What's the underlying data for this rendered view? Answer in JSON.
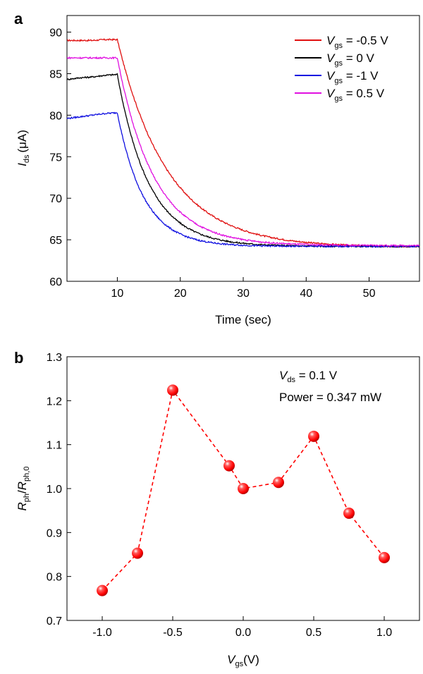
{
  "chart_data": [
    {
      "panel": "a",
      "type": "line",
      "xlabel": "Time (sec)",
      "ylabel": {
        "symbol": "I",
        "sub": "ds",
        "unit": "(μA)"
      },
      "xlim": [
        2,
        58
      ],
      "ylim": [
        60,
        92
      ],
      "xticks": [
        10,
        20,
        30,
        40,
        50
      ],
      "yticks": [
        60,
        65,
        70,
        75,
        80,
        85,
        90
      ],
      "legend": "top-right",
      "series": [
        {
          "label": {
            "symbol": "V",
            "sub": "gs",
            "text": " = -0.5 V"
          },
          "color": "#e01010",
          "tau": 8.0,
          "start": 89.0,
          "end": 64.1,
          "x": [
            2,
            4,
            6,
            8,
            10,
            12,
            14,
            16,
            18,
            20,
            24,
            28,
            32,
            36,
            40,
            45,
            50,
            55,
            58
          ],
          "y": [
            89.0,
            89.0,
            89.0,
            89.1,
            89.1,
            83.8,
            79.9,
            76.9,
            74.6,
            72.8,
            70.2,
            68.3,
            66.9,
            65.9,
            65.2,
            64.6,
            64.3,
            64.2,
            64.1
          ]
        },
        {
          "label": {
            "symbol": "V",
            "sub": "gs",
            "text": " = 0 V"
          },
          "color": "#000000",
          "tau": 5.0,
          "start": 84.3,
          "end": 64.2,
          "x": [
            2,
            4,
            6,
            8,
            10,
            12,
            14,
            16,
            18,
            20,
            24,
            28,
            32,
            36,
            40,
            45,
            50,
            55,
            58
          ],
          "y": [
            84.3,
            84.5,
            84.6,
            84.8,
            84.9,
            77.9,
            73.4,
            70.6,
            68.9,
            67.5,
            65.9,
            65.0,
            64.6,
            64.4,
            64.3,
            64.3,
            64.3,
            64.2,
            64.2
          ]
        },
        {
          "label": {
            "symbol": "V",
            "sub": "gs",
            "text": " = -1 V"
          },
          "color": "#1010e0",
          "tau": 4.2,
          "start": 79.6,
          "end": 64.2,
          "x": [
            2,
            4,
            6,
            8,
            10,
            12,
            14,
            16,
            18,
            20,
            24,
            28,
            32,
            36,
            40,
            45,
            50,
            55,
            58
          ],
          "y": [
            79.6,
            79.8,
            80.0,
            80.2,
            80.3,
            74.3,
            70.6,
            68.3,
            66.9,
            66.0,
            65.0,
            64.6,
            64.4,
            64.3,
            64.2,
            64.2,
            64.2,
            64.2,
            64.2
          ]
        },
        {
          "label": {
            "symbol": "V",
            "sub": "gs",
            "text": " = 0.5 V"
          },
          "color": "#e010e0",
          "tau": 5.8,
          "start": 86.9,
          "end": 64.3,
          "x": [
            2,
            4,
            6,
            8,
            10,
            12,
            14,
            16,
            18,
            20,
            24,
            28,
            32,
            36,
            40,
            45,
            50,
            55,
            58
          ],
          "y": [
            86.9,
            86.9,
            86.9,
            86.9,
            86.9,
            80.5,
            75.9,
            72.7,
            70.4,
            68.7,
            66.5,
            65.3,
            64.7,
            64.5,
            64.4,
            64.3,
            64.3,
            64.3,
            64.3
          ]
        }
      ]
    },
    {
      "panel": "b",
      "type": "scatter",
      "line_style": "dashed",
      "xlabel": {
        "symbol": "V",
        "sub": "gs",
        "unit": "(V)"
      },
      "ylabel": {
        "symbol1": "R",
        "sub1": "ph",
        "symbol2": "R",
        "sub2": "ph,0"
      },
      "xlim": [
        -1.25,
        1.25
      ],
      "ylim": [
        0.7,
        1.3
      ],
      "xticks": [
        -1.0,
        -0.5,
        0.0,
        0.5,
        1.0
      ],
      "xtick_labels": [
        "-1.0",
        "-0.5",
        "0.0",
        "0.5",
        "1.0"
      ],
      "yticks": [
        0.7,
        0.8,
        0.9,
        1.0,
        1.1,
        1.2,
        1.3
      ],
      "ytick_labels": [
        "0.7",
        "0.8",
        "0.9",
        "1.0",
        "1.1",
        "1.2",
        "1.3"
      ],
      "color": "#ff0000",
      "x": [
        -1.0,
        -0.75,
        -0.5,
        -0.1,
        0.0,
        0.25,
        0.5,
        0.75,
        1.0
      ],
      "y": [
        0.768,
        0.853,
        1.224,
        1.052,
        1.0,
        1.014,
        1.119,
        0.944,
        0.843
      ],
      "annotations": [
        {
          "symbol": "V",
          "sub": "ds",
          "text": " = 0.1 V"
        },
        {
          "text": "Power = 0.347 mW"
        }
      ]
    }
  ]
}
